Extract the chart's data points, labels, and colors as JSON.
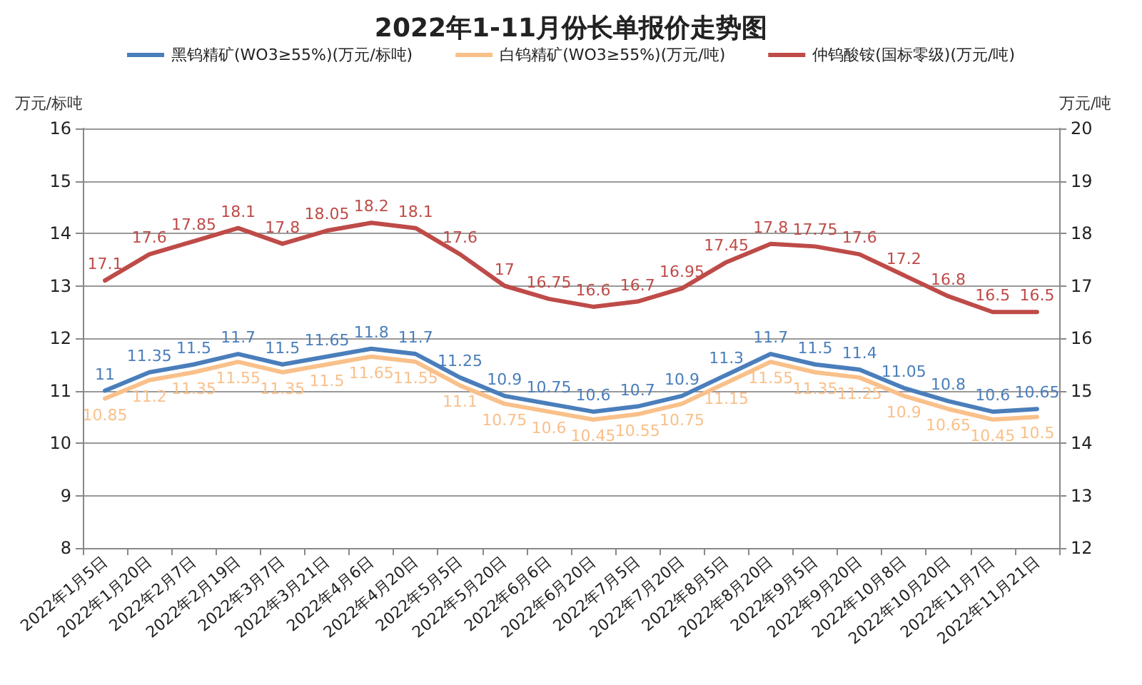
{
  "chart_data": {
    "type": "line",
    "title": "2022年1-11月份长单报价走势图",
    "ylabel": "万元/标吨",
    "y2label": "万元/吨",
    "categories": [
      "2022年1月5日",
      "2022年1月20日",
      "2022年2月7日",
      "2022年2月19日",
      "2022年3月7日",
      "2022年3月21日",
      "2022年4月6日",
      "2022年4月20日",
      "2022年5月5日",
      "2022年5月20日",
      "2022年6月6日",
      "2022年6月20日",
      "2022年7月5日",
      "2022年7月20日",
      "2022年8月5日",
      "2022年8月20日",
      "2022年9月5日",
      "2022年9月20日",
      "2022年10月8日",
      "2022年10月20日",
      "2022年11月7日",
      "2022年11月21日"
    ],
    "series": [
      {
        "name": "黑钨精矿(WO3≥55%)(万元/标吨)",
        "color": "#4a7ebb",
        "values": [
          11,
          11.35,
          11.5,
          11.7,
          11.5,
          11.65,
          11.8,
          11.7,
          11.25,
          10.9,
          10.75,
          10.6,
          10.7,
          10.9,
          11.3,
          11.7,
          11.5,
          11.4,
          11.05,
          10.8,
          10.6,
          10.65
        ]
      },
      {
        "name": "白钨精矿(WO3≥55%)(万元/吨)",
        "color": "#f9c08a",
        "values": [
          10.85,
          11.2,
          11.35,
          11.55,
          11.35,
          11.5,
          11.65,
          11.55,
          11.1,
          10.75,
          10.6,
          10.45,
          10.55,
          10.75,
          11.15,
          11.55,
          11.35,
          11.25,
          10.9,
          10.65,
          10.45,
          10.5
        ]
      },
      {
        "name": "仲钨酸铵(国标零级)(万元/吨)",
        "color": "#be4b48",
        "axis": "y2",
        "values": [
          17.1,
          17.6,
          17.85,
          18.1,
          17.8,
          18.05,
          18.2,
          18.1,
          17.6,
          17,
          16.75,
          16.6,
          16.7,
          16.95,
          17.45,
          17.8,
          17.75,
          17.6,
          17.2,
          16.8,
          16.5,
          16.5
        ]
      }
    ],
    "ylim": [
      8,
      16
    ],
    "yticks": [
      8,
      9,
      10,
      11,
      12,
      13,
      14,
      15,
      16
    ],
    "y2lim": [
      12,
      20
    ],
    "y2ticks": [
      12,
      13,
      14,
      15,
      16,
      17,
      18,
      19,
      20
    ],
    "data_labels": true,
    "grid": "y",
    "legend": "top",
    "marker": "none",
    "line_style": "solid"
  }
}
